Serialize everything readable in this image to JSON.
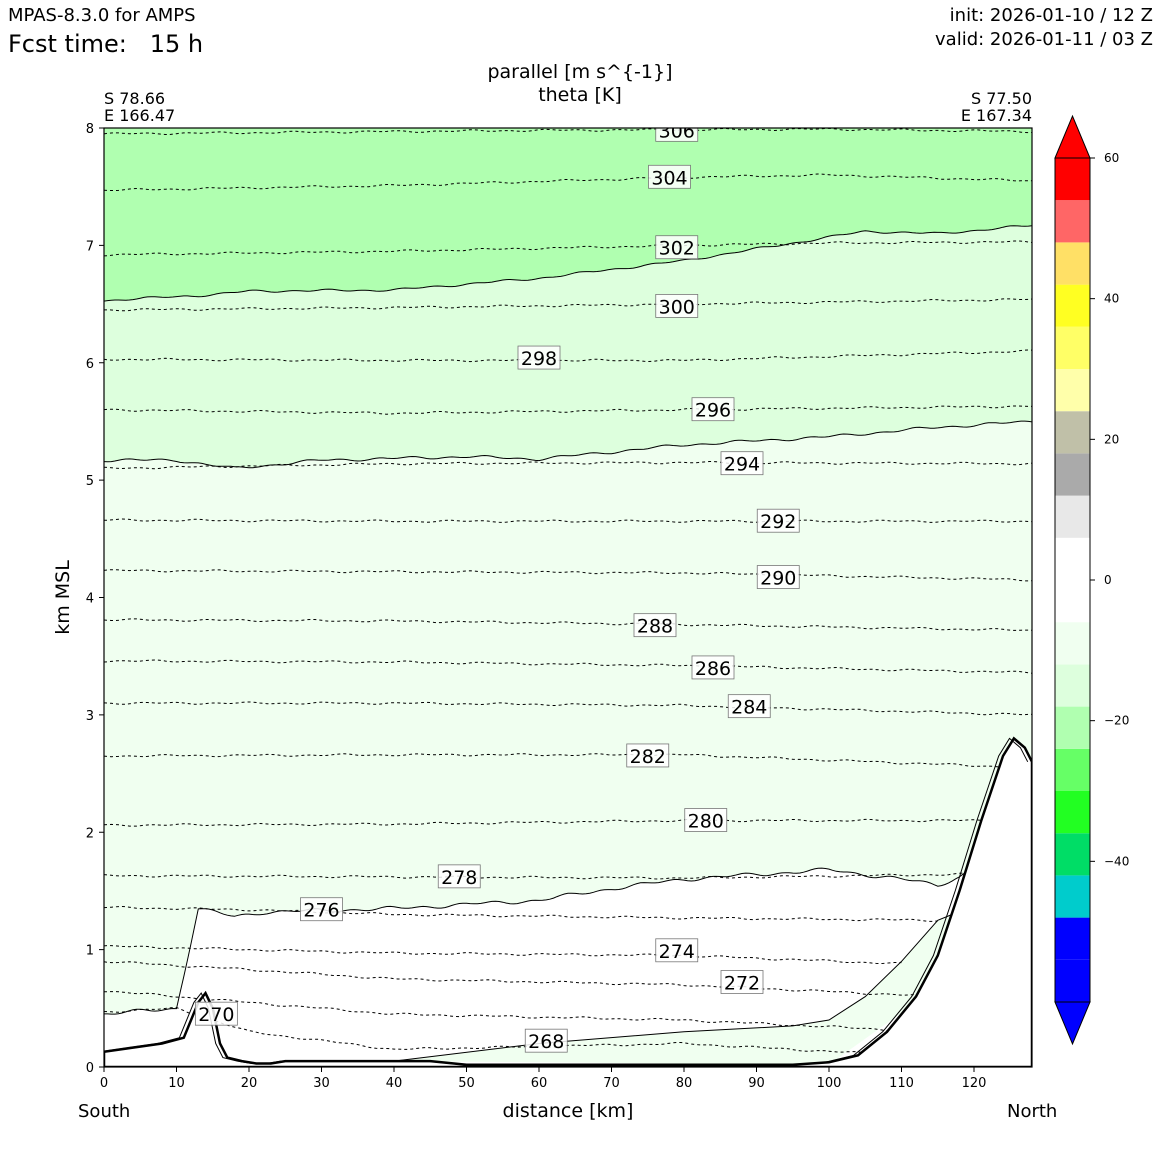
{
  "header": {
    "model": "MPAS-8.3.0 for AMPS",
    "fcst_label": "Fcst time:",
    "fcst_value": "15 h",
    "init": "init: 2026-01-10 / 12 Z",
    "valid": "valid: 2026-01-11 / 03 Z"
  },
  "chart_data": {
    "type": "contour",
    "title": "parallel [m s^{-1}]",
    "subtitle": "theta [K]",
    "xlabel": "distance [km]",
    "ylabel": "km MSL",
    "xlim": [
      0,
      128
    ],
    "ylim": [
      0,
      8
    ],
    "xticks": [
      0,
      10,
      20,
      30,
      40,
      50,
      60,
      70,
      80,
      90,
      100,
      110,
      120
    ],
    "yticks": [
      0,
      1,
      2,
      3,
      4,
      5,
      6,
      7,
      8
    ],
    "left_end": {
      "lat": "S 78.66",
      "lon": "E 166.47",
      "label": "South"
    },
    "right_end": {
      "lat": "S 77.50",
      "lon": "E 167.34",
      "label": "North"
    },
    "colorbar": {
      "range": [
        -60,
        60
      ],
      "step": 5,
      "ticks": [
        60,
        40,
        20,
        0,
        -20,
        -40
      ],
      "colors": [
        "#0000ff",
        "#0000ff",
        "#00cccc",
        "#00dd66",
        "#22ff22",
        "#66ff66",
        "#b0ffb0",
        "#ddffdd",
        "#f0fff0",
        "#ffffff",
        "#ffffff",
        "#e8e8e8",
        "#aaaaaa",
        "#c0c0a8",
        "#ffffaa",
        "#ffff66",
        "#ffff22",
        "#ffe066",
        "#ff6666",
        "#ff0000"
      ],
      "extend_low": "#0000ff",
      "extend_high": "#ff0000"
    },
    "wind_bands": [
      {
        "name": "-20..-15",
        "color": "#b0ffb0",
        "lower": [
          [
            0,
            6.53
          ],
          [
            15,
            6.58
          ],
          [
            20,
            6.61
          ],
          [
            40,
            6.62
          ],
          [
            60,
            6.72
          ],
          [
            80,
            6.87
          ],
          [
            100,
            7.07
          ],
          [
            105,
            7.12
          ],
          [
            115,
            7.1
          ],
          [
            128,
            7.17
          ]
        ],
        "upper": 8
      },
      {
        "name": "-15..-10",
        "color": "#ddffdd",
        "lower": [
          [
            0,
            5.17
          ],
          [
            10,
            5.17
          ],
          [
            18,
            5.1
          ],
          [
            30,
            5.17
          ],
          [
            50,
            5.2
          ],
          [
            60,
            5.18
          ],
          [
            80,
            5.3
          ],
          [
            100,
            5.37
          ],
          [
            115,
            5.45
          ],
          [
            128,
            5.5
          ]
        ],
        "upper_ref": "prev"
      },
      {
        "name": "-10..-5",
        "color": "#f0fff0"
      }
    ],
    "theta_levels": [
      {
        "value": 306,
        "y": [
          [
            0,
            7.95
          ],
          [
            60,
            7.98
          ],
          [
            100,
            7.99
          ],
          [
            128,
            7.97
          ]
        ],
        "label_x": 79,
        "label_y": 7.98
      },
      {
        "value": 304,
        "y": [
          [
            0,
            7.47
          ],
          [
            40,
            7.51
          ],
          [
            80,
            7.58
          ],
          [
            100,
            7.6
          ],
          [
            128,
            7.55
          ]
        ],
        "label_x": 78,
        "label_y": 7.58
      },
      {
        "value": 302,
        "y": [
          [
            0,
            6.92
          ],
          [
            40,
            6.95
          ],
          [
            80,
            7.0
          ],
          [
            100,
            7.02
          ],
          [
            128,
            7.03
          ]
        ],
        "label_x": 79,
        "label_y": 6.98
      },
      {
        "value": 300,
        "y": [
          [
            0,
            6.45
          ],
          [
            40,
            6.47
          ],
          [
            80,
            6.5
          ],
          [
            128,
            6.54
          ]
        ],
        "label_x": 79,
        "label_y": 6.48
      },
      {
        "value": 298,
        "y": [
          [
            0,
            6.03
          ],
          [
            40,
            6.02
          ],
          [
            80,
            6.02
          ],
          [
            128,
            6.1
          ]
        ],
        "label_x": 60,
        "label_y": 6.04
      },
      {
        "value": 296,
        "y": [
          [
            0,
            5.6
          ],
          [
            40,
            5.57
          ],
          [
            80,
            5.6
          ],
          [
            128,
            5.63
          ]
        ],
        "label_x": 84,
        "label_y": 5.6
      },
      {
        "value": 294,
        "y": [
          [
            0,
            5.1
          ],
          [
            40,
            5.14
          ],
          [
            80,
            5.15
          ],
          [
            128,
            5.14
          ]
        ],
        "label_x": 88,
        "label_y": 5.14
      },
      {
        "value": 292,
        "y": [
          [
            0,
            4.66
          ],
          [
            40,
            4.65
          ],
          [
            80,
            4.65
          ],
          [
            128,
            4.65
          ]
        ],
        "label_x": 93,
        "label_y": 4.65
      },
      {
        "value": 290,
        "y": [
          [
            0,
            4.23
          ],
          [
            40,
            4.22
          ],
          [
            80,
            4.21
          ],
          [
            128,
            4.15
          ]
        ],
        "label_x": 93,
        "label_y": 4.17
      },
      {
        "value": 288,
        "y": [
          [
            0,
            3.81
          ],
          [
            40,
            3.8
          ],
          [
            80,
            3.77
          ],
          [
            128,
            3.72
          ]
        ],
        "label_x": 76,
        "label_y": 3.76
      },
      {
        "value": 286,
        "y": [
          [
            0,
            3.46
          ],
          [
            40,
            3.45
          ],
          [
            80,
            3.42
          ],
          [
            128,
            3.36
          ]
        ],
        "label_x": 84,
        "label_y": 3.4
      },
      {
        "value": 284,
        "y": [
          [
            0,
            3.1
          ],
          [
            40,
            3.1
          ],
          [
            80,
            3.08
          ],
          [
            128,
            3.0
          ]
        ],
        "label_x": 89,
        "label_y": 3.07
      },
      {
        "value": 282,
        "y": [
          [
            0,
            2.65
          ],
          [
            40,
            2.66
          ],
          [
            80,
            2.66
          ],
          [
            128,
            2.55
          ]
        ],
        "label_x": 75,
        "label_y": 2.65
      },
      {
        "value": 280,
        "y": [
          [
            0,
            2.06
          ],
          [
            40,
            2.07
          ],
          [
            80,
            2.1
          ],
          [
            128,
            2.1
          ]
        ],
        "label_x": 83,
        "label_y": 2.1
      },
      {
        "value": 278,
        "y": [
          [
            0,
            1.63
          ],
          [
            40,
            1.62
          ],
          [
            80,
            1.61
          ],
          [
            128,
            1.65
          ]
        ],
        "label_x": 49,
        "label_y": 1.62
      },
      {
        "value": 276,
        "y": [
          [
            0,
            1.36
          ],
          [
            20,
            1.34
          ],
          [
            40,
            1.3
          ],
          [
            80,
            1.27
          ],
          [
            115,
            1.25
          ]
        ],
        "label_x": 30,
        "label_y": 1.34
      },
      {
        "value": 274,
        "y": [
          [
            0,
            1.03
          ],
          [
            20,
            1.0
          ],
          [
            40,
            0.97
          ],
          [
            80,
            0.95
          ],
          [
            110,
            0.88
          ]
        ],
        "label_x": 79,
        "label_y": 0.99
      },
      {
        "value": 272,
        "y": [
          [
            0,
            0.9
          ],
          [
            20,
            0.83
          ],
          [
            40,
            0.75
          ],
          [
            80,
            0.7
          ],
          [
            115,
            0.6
          ]
        ],
        "label_x": 88,
        "label_y": 0.72
      },
      {
        "value": 270,
        "y": [
          [
            0,
            0.65
          ],
          [
            10,
            0.6
          ],
          [
            20,
            0.55
          ],
          [
            40,
            0.45
          ],
          [
            80,
            0.4
          ],
          [
            115,
            0.3
          ]
        ],
        "label_x": 15.5,
        "label_y": 0.45
      },
      {
        "value": 268,
        "y": [
          [
            0,
            0.47
          ],
          [
            10,
            0.5
          ],
          [
            20,
            0.3
          ],
          [
            40,
            0.15
          ],
          [
            80,
            0.2
          ],
          [
            110,
            0.1
          ]
        ],
        "label_x": 61,
        "label_y": 0.22
      }
    ],
    "terrain": [
      [
        0,
        0.13
      ],
      [
        8,
        0.2
      ],
      [
        11,
        0.25
      ],
      [
        13,
        0.55
      ],
      [
        14,
        0.63
      ],
      [
        15,
        0.5
      ],
      [
        16,
        0.2
      ],
      [
        17,
        0.08
      ],
      [
        19,
        0.05
      ],
      [
        21,
        0.03
      ],
      [
        23,
        0.03
      ],
      [
        25,
        0.05
      ],
      [
        45,
        0.05
      ],
      [
        50,
        0.02
      ],
      [
        95,
        0.02
      ],
      [
        100,
        0.04
      ],
      [
        104,
        0.1
      ],
      [
        108,
        0.3
      ],
      [
        112,
        0.6
      ],
      [
        115,
        0.95
      ],
      [
        118,
        1.5
      ],
      [
        121,
        2.1
      ],
      [
        124,
        2.65
      ],
      [
        125.5,
        2.8
      ],
      [
        127,
        2.72
      ],
      [
        128,
        2.6
      ]
    ]
  }
}
